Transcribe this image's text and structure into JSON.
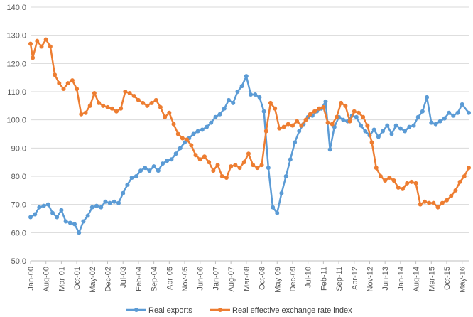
{
  "chart_data": {
    "type": "line",
    "title": "",
    "xlabel": "",
    "ylabel": "",
    "ylim": [
      50,
      140
    ],
    "yticks": [
      "50.0",
      "60.0",
      "70.0",
      "80.0",
      "90.0",
      "100.0",
      "110.0",
      "120.0",
      "130.0",
      "140.0"
    ],
    "x_start": "2000-01",
    "x_end": "2016-08",
    "x_ticks": [
      "Jan-00",
      "Aug-00",
      "Mar-01",
      "Oct-01",
      "May-02",
      "Dec-02",
      "Jul-03",
      "Feb-04",
      "Sep-04",
      "Apr-05",
      "Nov-05",
      "Jun-06",
      "Jan-07",
      "Aug-07",
      "Mar-08",
      "Oct-08",
      "May-09",
      "Dec-09",
      "Jul-10",
      "Feb-11",
      "Sep-11",
      "Apr-12",
      "Nov-12",
      "Jun-13",
      "Jan-14",
      "Aug-14",
      "Mar-15",
      "Oct-15",
      "May-16"
    ],
    "grid": "horizontal",
    "legend_position": "bottom",
    "series": [
      {
        "name": "Real exports",
        "color": "#5B9BD5",
        "points": [
          [
            "2000-01",
            65.5
          ],
          [
            "2000-03",
            66.5
          ],
          [
            "2000-05",
            69
          ],
          [
            "2000-07",
            69.5
          ],
          [
            "2000-09",
            70
          ],
          [
            "2000-11",
            67
          ],
          [
            "2001-01",
            65.5
          ],
          [
            "2001-03",
            68
          ],
          [
            "2001-05",
            64
          ],
          [
            "2001-07",
            63.5
          ],
          [
            "2001-09",
            63
          ],
          [
            "2001-11",
            60
          ],
          [
            "2002-01",
            64
          ],
          [
            "2002-03",
            66
          ],
          [
            "2002-05",
            69
          ],
          [
            "2002-07",
            69.5
          ],
          [
            "2002-09",
            69
          ],
          [
            "2002-11",
            71
          ],
          [
            "2003-01",
            70.5
          ],
          [
            "2003-03",
            71
          ],
          [
            "2003-05",
            70.5
          ],
          [
            "2003-07",
            74
          ],
          [
            "2003-09",
            77
          ],
          [
            "2003-11",
            79.5
          ],
          [
            "2004-01",
            80
          ],
          [
            "2004-03",
            82
          ],
          [
            "2004-05",
            83
          ],
          [
            "2004-07",
            82
          ],
          [
            "2004-09",
            83.5
          ],
          [
            "2004-11",
            82
          ],
          [
            "2005-01",
            84.5
          ],
          [
            "2005-03",
            85.5
          ],
          [
            "2005-05",
            86
          ],
          [
            "2005-07",
            88
          ],
          [
            "2005-09",
            90
          ],
          [
            "2005-11",
            92
          ],
          [
            "2006-01",
            93.5
          ],
          [
            "2006-03",
            95
          ],
          [
            "2006-05",
            96
          ],
          [
            "2006-07",
            96.5
          ],
          [
            "2006-09",
            97.5
          ],
          [
            "2006-11",
            99
          ],
          [
            "2007-01",
            101
          ],
          [
            "2007-03",
            102
          ],
          [
            "2007-05",
            104
          ],
          [
            "2007-07",
            107
          ],
          [
            "2007-09",
            106
          ],
          [
            "2007-11",
            110
          ],
          [
            "2008-01",
            112
          ],
          [
            "2008-03",
            115.5
          ],
          [
            "2008-05",
            109
          ],
          [
            "2008-07",
            109
          ],
          [
            "2008-09",
            108
          ],
          [
            "2008-11",
            103
          ],
          [
            "2009-01",
            83
          ],
          [
            "2009-03",
            69
          ],
          [
            "2009-05",
            67
          ],
          [
            "2009-07",
            74
          ],
          [
            "2009-09",
            80
          ],
          [
            "2009-11",
            86
          ],
          [
            "2010-01",
            92
          ],
          [
            "2010-03",
            96
          ],
          [
            "2010-05",
            98.5
          ],
          [
            "2010-07",
            101
          ],
          [
            "2010-09",
            101.5
          ],
          [
            "2010-11",
            103
          ],
          [
            "2011-01",
            104
          ],
          [
            "2011-03",
            106.5
          ],
          [
            "2011-05",
            89.5
          ],
          [
            "2011-07",
            97.5
          ],
          [
            "2011-09",
            101
          ],
          [
            "2011-11",
            100
          ],
          [
            "2012-01",
            99.5
          ],
          [
            "2012-03",
            101.5
          ],
          [
            "2012-05",
            101
          ],
          [
            "2012-07",
            98
          ],
          [
            "2012-09",
            96
          ],
          [
            "2012-11",
            94.5
          ],
          [
            "2013-01",
            96.5
          ],
          [
            "2013-03",
            94
          ],
          [
            "2013-05",
            96
          ],
          [
            "2013-07",
            98
          ],
          [
            "2013-09",
            95
          ],
          [
            "2013-11",
            98
          ],
          [
            "2014-01",
            97
          ],
          [
            "2014-03",
            96
          ],
          [
            "2014-05",
            97.5
          ],
          [
            "2014-07",
            98
          ],
          [
            "2014-09",
            101
          ],
          [
            "2014-11",
            103
          ],
          [
            "2015-01",
            108
          ],
          [
            "2015-03",
            99
          ],
          [
            "2015-05",
            98.5
          ],
          [
            "2015-07",
            99.5
          ],
          [
            "2015-09",
            100.5
          ],
          [
            "2015-11",
            102.5
          ],
          [
            "2016-01",
            101.5
          ],
          [
            "2016-03",
            102.5
          ],
          [
            "2016-05",
            105.5
          ],
          [
            "2016-08",
            102.5
          ]
        ]
      },
      {
        "name": "Real effective exchange rate index",
        "color": "#ED7D31",
        "points": [
          [
            "2000-01",
            127
          ],
          [
            "2000-02",
            122
          ],
          [
            "2000-04",
            128
          ],
          [
            "2000-06",
            126
          ],
          [
            "2000-08",
            128.5
          ],
          [
            "2000-10",
            126
          ],
          [
            "2000-12",
            116
          ],
          [
            "2001-02",
            113
          ],
          [
            "2001-04",
            111
          ],
          [
            "2001-06",
            113
          ],
          [
            "2001-08",
            114
          ],
          [
            "2001-10",
            111
          ],
          [
            "2001-12",
            102
          ],
          [
            "2002-02",
            102.5
          ],
          [
            "2002-04",
            105
          ],
          [
            "2002-06",
            109.5
          ],
          [
            "2002-08",
            106
          ],
          [
            "2002-10",
            105
          ],
          [
            "2002-12",
            104.5
          ],
          [
            "2003-02",
            104
          ],
          [
            "2003-04",
            103
          ],
          [
            "2003-06",
            104
          ],
          [
            "2003-08",
            110
          ],
          [
            "2003-10",
            109.5
          ],
          [
            "2003-12",
            108.5
          ],
          [
            "2004-02",
            107
          ],
          [
            "2004-04",
            106
          ],
          [
            "2004-06",
            105
          ],
          [
            "2004-08",
            106
          ],
          [
            "2004-10",
            107
          ],
          [
            "2004-12",
            104.5
          ],
          [
            "2005-02",
            101
          ],
          [
            "2005-04",
            102.5
          ],
          [
            "2005-06",
            98.5
          ],
          [
            "2005-08",
            95
          ],
          [
            "2005-10",
            93.5
          ],
          [
            "2005-12",
            93
          ],
          [
            "2006-02",
            91
          ],
          [
            "2006-04",
            87.5
          ],
          [
            "2006-06",
            86
          ],
          [
            "2006-08",
            87
          ],
          [
            "2006-10",
            85
          ],
          [
            "2006-12",
            82
          ],
          [
            "2007-02",
            84
          ],
          [
            "2007-04",
            80
          ],
          [
            "2007-06",
            79.5
          ],
          [
            "2007-08",
            83.5
          ],
          [
            "2007-10",
            84
          ],
          [
            "2007-12",
            83
          ],
          [
            "2008-02",
            85
          ],
          [
            "2008-04",
            88
          ],
          [
            "2008-06",
            84
          ],
          [
            "2008-08",
            83
          ],
          [
            "2008-10",
            84
          ],
          [
            "2008-12",
            96
          ],
          [
            "2009-02",
            106
          ],
          [
            "2009-04",
            104
          ],
          [
            "2009-06",
            97
          ],
          [
            "2009-08",
            97.5
          ],
          [
            "2009-10",
            98.5
          ],
          [
            "2009-12",
            98
          ],
          [
            "2010-02",
            99.5
          ],
          [
            "2010-04",
            98
          ],
          [
            "2010-06",
            100
          ],
          [
            "2010-08",
            102
          ],
          [
            "2010-10",
            103
          ],
          [
            "2010-12",
            104
          ],
          [
            "2011-02",
            104.5
          ],
          [
            "2011-04",
            99
          ],
          [
            "2011-06",
            98.5
          ],
          [
            "2011-08",
            101
          ],
          [
            "2011-10",
            106
          ],
          [
            "2011-12",
            105
          ],
          [
            "2012-02",
            99.5
          ],
          [
            "2012-04",
            103
          ],
          [
            "2012-06",
            102.5
          ],
          [
            "2012-08",
            101
          ],
          [
            "2012-10",
            98
          ],
          [
            "2012-12",
            92
          ],
          [
            "2013-02",
            83
          ],
          [
            "2013-04",
            80
          ],
          [
            "2013-06",
            78.5
          ],
          [
            "2013-08",
            79.5
          ],
          [
            "2013-10",
            78.5
          ],
          [
            "2013-12",
            76
          ],
          [
            "2014-02",
            75.5
          ],
          [
            "2014-04",
            77.5
          ],
          [
            "2014-06",
            78
          ],
          [
            "2014-08",
            77.5
          ],
          [
            "2014-10",
            70
          ],
          [
            "2014-12",
            71
          ],
          [
            "2015-02",
            70.5
          ],
          [
            "2015-04",
            70.5
          ],
          [
            "2015-06",
            69
          ],
          [
            "2015-08",
            70.5
          ],
          [
            "2015-10",
            71.5
          ],
          [
            "2015-12",
            73
          ],
          [
            "2016-02",
            75
          ],
          [
            "2016-04",
            78
          ],
          [
            "2016-06",
            80
          ],
          [
            "2016-08",
            83
          ]
        ]
      }
    ]
  }
}
